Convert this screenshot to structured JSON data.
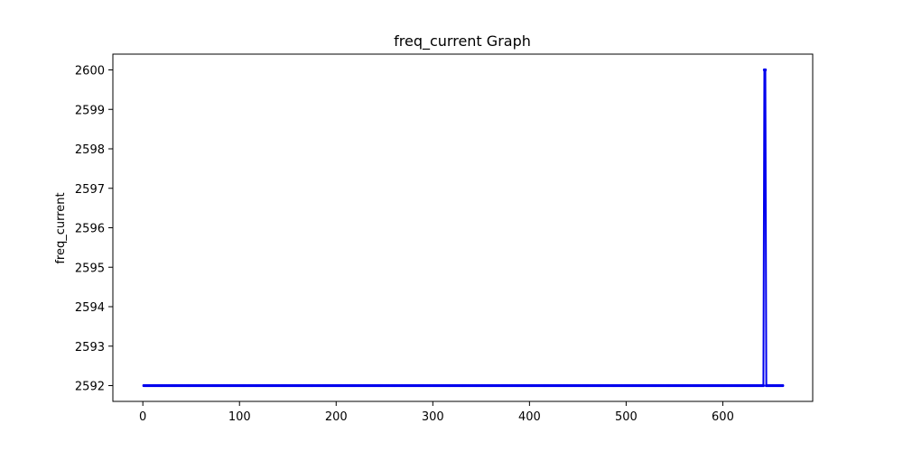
{
  "colors": {
    "series": "#0000ee",
    "axis": "#000000",
    "background": "#ffffff"
  },
  "chart_data": {
    "type": "line",
    "title": "freq_current Graph",
    "xlabel": "",
    "ylabel": "freq_current",
    "xlim": [
      -31,
      693
    ],
    "ylim": [
      2591.6,
      2600.4
    ],
    "x_ticks": [
      0,
      100,
      200,
      300,
      400,
      500,
      600
    ],
    "y_ticks": [
      2592,
      2593,
      2594,
      2595,
      2596,
      2597,
      2598,
      2599,
      2600
    ],
    "grid": false,
    "marker": "dot",
    "series": [
      {
        "name": "freq_current",
        "x_start": 1,
        "x_end": 662,
        "baseline": 2592,
        "spikes": [
          {
            "x": 643,
            "y": 2600
          },
          {
            "x": 644,
            "y": 2600
          }
        ]
      }
    ]
  }
}
